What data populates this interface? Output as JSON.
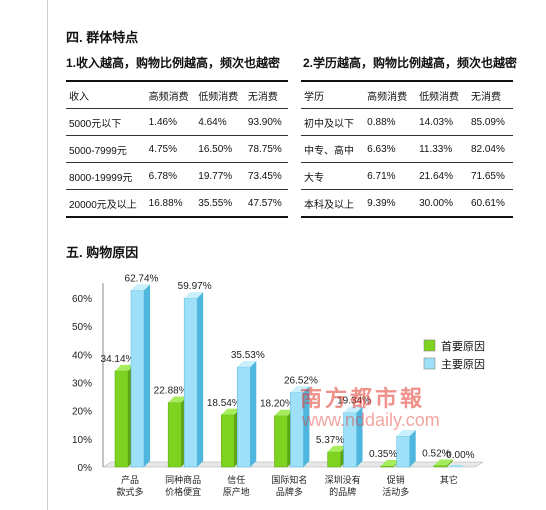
{
  "section4_title": "四. 群体特点",
  "table1": {
    "title": "1.收入越高，购物比例越高，频次也越密",
    "headers": [
      "收入",
      "高频消费",
      "低频消费",
      "无消费"
    ],
    "rows": [
      [
        "5000元以下",
        "1.46%",
        "4.64%",
        "93.90%"
      ],
      [
        "5000-7999元",
        "4.75%",
        "16.50%",
        "78.75%"
      ],
      [
        "8000-19999元",
        "6.78%",
        "19.77%",
        "73.45%"
      ],
      [
        "20000元及以上",
        "16.88%",
        "35.55%",
        "47.57%"
      ]
    ]
  },
  "table2": {
    "title": "2.学历越高，购物比例越高，频次也越密",
    "headers": [
      "学历",
      "高频消费",
      "低频消费",
      "无消费"
    ],
    "rows": [
      [
        "初中及以下",
        "0.88%",
        "14.03%",
        "85.09%"
      ],
      [
        "中专、高中",
        "6.63%",
        "11.33%",
        "82.04%"
      ],
      [
        "大专",
        "6.71%",
        "21.64%",
        "71.65%"
      ],
      [
        "本科及以上",
        "9.39%",
        "30.00%",
        "60.61%"
      ]
    ]
  },
  "section5_title": "五. 购物原因",
  "watermark": "南方都市報",
  "watermark_url": "www.nddaily.com",
  "chart_data": {
    "type": "bar",
    "categories": [
      [
        "产品",
        "款式多"
      ],
      [
        "同种商品",
        "价格便宜"
      ],
      [
        "信任",
        "原产地"
      ],
      [
        "国际知名",
        "品牌多"
      ],
      [
        "深圳没有",
        "的品牌"
      ],
      [
        "促销",
        "活动多"
      ],
      [
        "其它"
      ]
    ],
    "series": [
      {
        "name": "首要原因",
        "color": "#7ed321",
        "values": [
          34.14,
          22.88,
          18.54,
          18.2,
          5.37,
          0.35,
          0.52
        ]
      },
      {
        "name": "主要原因",
        "color": "#9ee0f7",
        "values": [
          62.74,
          59.97,
          35.53,
          26.52,
          19.34,
          11.0,
          0.0
        ]
      }
    ],
    "data_labels": [
      [
        "34.14%",
        "22.88%",
        "18.54%",
        "18.20%",
        "5.37%",
        "0.35%",
        "0.52%"
      ],
      [
        "62.74%",
        "59.97%",
        "35.53%",
        "26.52%",
        "19.34%",
        "",
        "0.00%"
      ]
    ],
    "y_ticks": [
      "0%",
      "10%",
      "20%",
      "30%",
      "40%",
      "50%",
      "60%"
    ],
    "ylim": [
      0,
      70
    ],
    "legend_position": "right"
  }
}
